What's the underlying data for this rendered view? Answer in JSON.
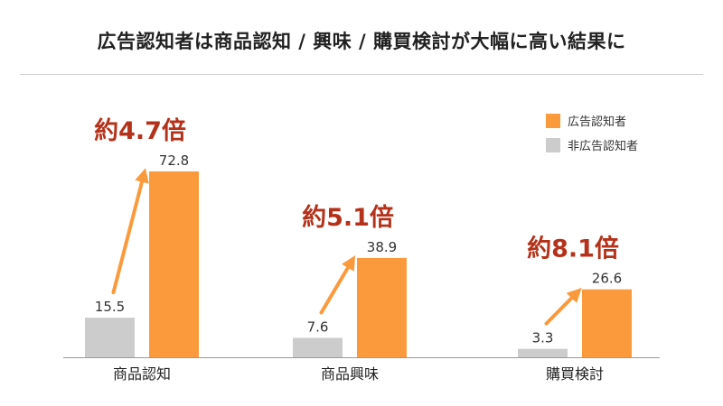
{
  "title": "広告認知者は商品認知 / 興味 / 購買検討が大幅に高い結果に",
  "chart_data": {
    "type": "bar",
    "title": "広告認知者は商品認知 / 興味 / 購買検討が大幅に高い結果に",
    "categories": [
      "商品認知",
      "商品興味",
      "購買検討"
    ],
    "series": [
      {
        "name": "非広告認知者",
        "color": "#cccccc",
        "values": [
          15.5,
          7.6,
          3.3
        ]
      },
      {
        "name": "広告認知者",
        "color": "#fb9a3c",
        "values": [
          72.8,
          38.9,
          26.6
        ]
      }
    ],
    "ratios": [
      "約4.7倍",
      "約5.1倍",
      "約8.1倍"
    ],
    "ratio_color": "#b5321a",
    "arrow_color": "#fb9a3c",
    "legend_position": "top-right",
    "grid": false
  }
}
